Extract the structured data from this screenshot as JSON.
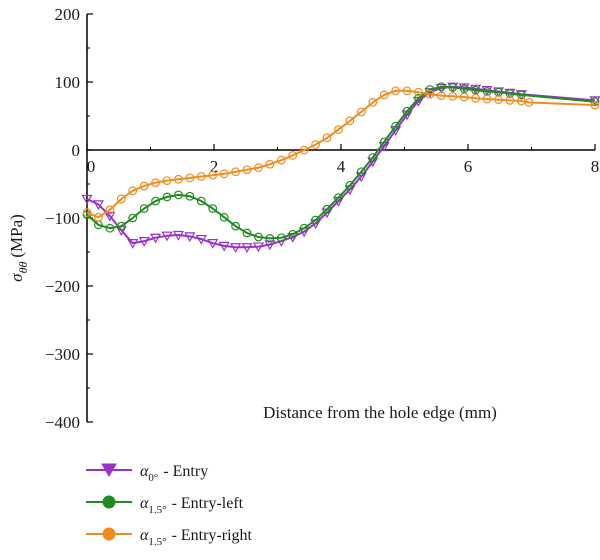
{
  "chart_data": {
    "type": "line",
    "xlabel": "Distance from the hole edge (mm)",
    "ylabel": {
      "symbol": "σ",
      "subscript": "θθ",
      "unit": "(MPa)"
    },
    "xlim": [
      0,
      8
    ],
    "ylim": [
      -400,
      200
    ],
    "x_ticks": [
      0,
      2,
      4,
      6,
      8
    ],
    "y_ticks": [
      200,
      100,
      0,
      -100,
      -200,
      -300,
      -400
    ],
    "x_tick_labels": [
      "0",
      "2",
      "4",
      "6",
      "8"
    ],
    "y_tick_labels": [
      "200",
      "100",
      "0",
      "−100",
      "−200",
      "−300",
      "−400"
    ],
    "grid": false,
    "legend_position": "bottom-left",
    "series": [
      {
        "legend": {
          "symbol": "α",
          "subscript": "0°",
          "label": "- Entry"
        },
        "color": "#9b30c9",
        "marker": "triangle-down",
        "x": [
          0.0,
          0.18,
          0.36,
          0.54,
          0.72,
          0.9,
          1.08,
          1.26,
          1.44,
          1.62,
          1.8,
          1.98,
          2.16,
          2.34,
          2.52,
          2.7,
          2.88,
          3.06,
          3.24,
          3.42,
          3.6,
          3.78,
          3.96,
          4.14,
          4.32,
          4.5,
          4.68,
          4.86,
          5.04,
          5.22,
          5.4,
          5.58,
          5.76,
          5.94,
          6.12,
          6.3,
          6.48,
          6.66,
          6.84,
          8.0
        ],
        "y": [
          -72,
          -80,
          -97,
          -118,
          -137,
          -134,
          -129,
          -126,
          -125,
          -127,
          -131,
          -137,
          -141,
          -143,
          -143,
          -142,
          -139,
          -134,
          -128,
          -120,
          -108,
          -92,
          -75,
          -58,
          -39,
          -17,
          6,
          29,
          52,
          72,
          85,
          91,
          93,
          92,
          90,
          88,
          86,
          84,
          82,
          73
        ]
      },
      {
        "legend": {
          "symbol": "α",
          "subscript": "1.5°",
          "label": "- Entry-left"
        },
        "color": "#1e8c1e",
        "marker": "circle",
        "x": [
          0.0,
          0.18,
          0.36,
          0.54,
          0.72,
          0.9,
          1.08,
          1.26,
          1.44,
          1.62,
          1.8,
          1.98,
          2.16,
          2.34,
          2.52,
          2.7,
          2.88,
          3.06,
          3.24,
          3.42,
          3.6,
          3.78,
          3.96,
          4.14,
          4.32,
          4.5,
          4.68,
          4.86,
          5.04,
          5.22,
          5.4,
          5.58,
          5.76,
          5.94,
          6.12,
          6.3,
          6.48,
          6.66,
          6.84,
          8.0
        ],
        "y": [
          -95,
          -110,
          -115,
          -112,
          -100,
          -86,
          -75,
          -69,
          -66,
          -68,
          -75,
          -86,
          -99,
          -112,
          -122,
          -128,
          -130,
          -129,
          -124,
          -115,
          -103,
          -87,
          -70,
          -52,
          -32,
          -11,
          12,
          35,
          57,
          76,
          89,
          93,
          92,
          90,
          88,
          86,
          85,
          83,
          81,
          71
        ]
      },
      {
        "legend": {
          "symbol": "α",
          "subscript": "1.5°",
          "label": "- Entry-right"
        },
        "color": "#f08c1e",
        "marker": "circle",
        "x": [
          0.0,
          0.18,
          0.36,
          0.54,
          0.72,
          0.9,
          1.08,
          1.26,
          1.44,
          1.62,
          1.8,
          1.98,
          2.16,
          2.34,
          2.52,
          2.7,
          2.88,
          3.06,
          3.24,
          3.42,
          3.6,
          3.78,
          3.96,
          4.14,
          4.32,
          4.5,
          4.68,
          4.86,
          5.04,
          5.22,
          5.4,
          5.58,
          5.76,
          5.94,
          6.12,
          6.3,
          6.48,
          6.66,
          6.84,
          6.96,
          8.0
        ],
        "y": [
          -92,
          -99,
          -88,
          -72,
          -60,
          -53,
          -48,
          -45,
          -43,
          -41,
          -39,
          -37,
          -35,
          -32,
          -29,
          -26,
          -21,
          -15,
          -8,
          0,
          8,
          18,
          30,
          43,
          56,
          70,
          81,
          87,
          87,
          85,
          82,
          80,
          79,
          78,
          76,
          75,
          74,
          73,
          72,
          70,
          66
        ]
      }
    ]
  }
}
